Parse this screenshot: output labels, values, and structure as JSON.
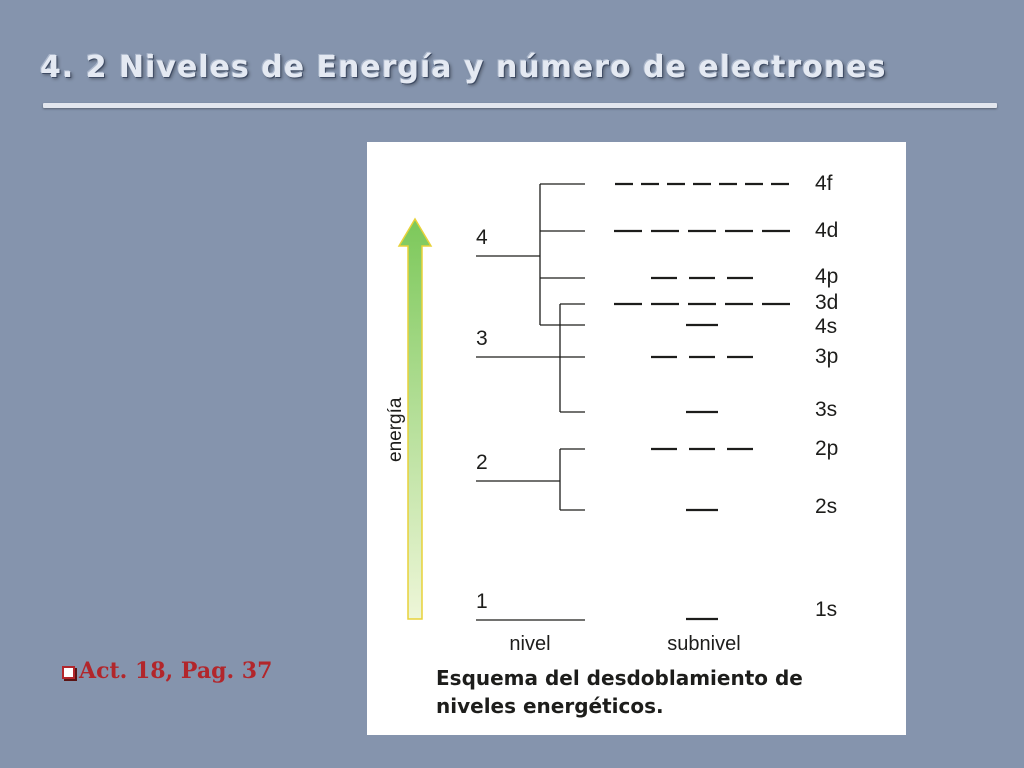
{
  "slide": {
    "title": "4. 2 Niveles de Energía y número de electrones",
    "activity_note": "Act. 18, Pag. 37"
  },
  "diagram": {
    "energy_axis_label": "energía",
    "column_labels": {
      "levels": "nivel",
      "sublevels": "subnivel"
    },
    "caption_lines": [
      "Esquema del desdoblamiento de",
      "niveles energéticos."
    ],
    "levels": [
      {
        "label": "1",
        "sublevels": [
          "1s"
        ]
      },
      {
        "label": "2",
        "sublevels": [
          "2s",
          "2p"
        ]
      },
      {
        "label": "3",
        "sublevels": [
          "3s",
          "3p",
          "3d"
        ]
      },
      {
        "label": "4",
        "sublevels": [
          "4s",
          "4p",
          "4d",
          "4f"
        ]
      }
    ],
    "sublevels": [
      {
        "name": "1s",
        "orbitals": 1
      },
      {
        "name": "2s",
        "orbitals": 1
      },
      {
        "name": "2p",
        "orbitals": 3
      },
      {
        "name": "3s",
        "orbitals": 1
      },
      {
        "name": "3p",
        "orbitals": 3
      },
      {
        "name": "4s",
        "orbitals": 1
      },
      {
        "name": "3d",
        "orbitals": 5
      },
      {
        "name": "4p",
        "orbitals": 3
      },
      {
        "name": "4d",
        "orbitals": 5
      },
      {
        "name": "4f",
        "orbitals": 7
      }
    ],
    "colors": {
      "arrow_top": "#7cc85a",
      "arrow_bottom": "#eef6d8",
      "arrow_outline": "#e8d23a",
      "line": "#1d1d1b",
      "label_text": "#1d1d1b"
    }
  }
}
